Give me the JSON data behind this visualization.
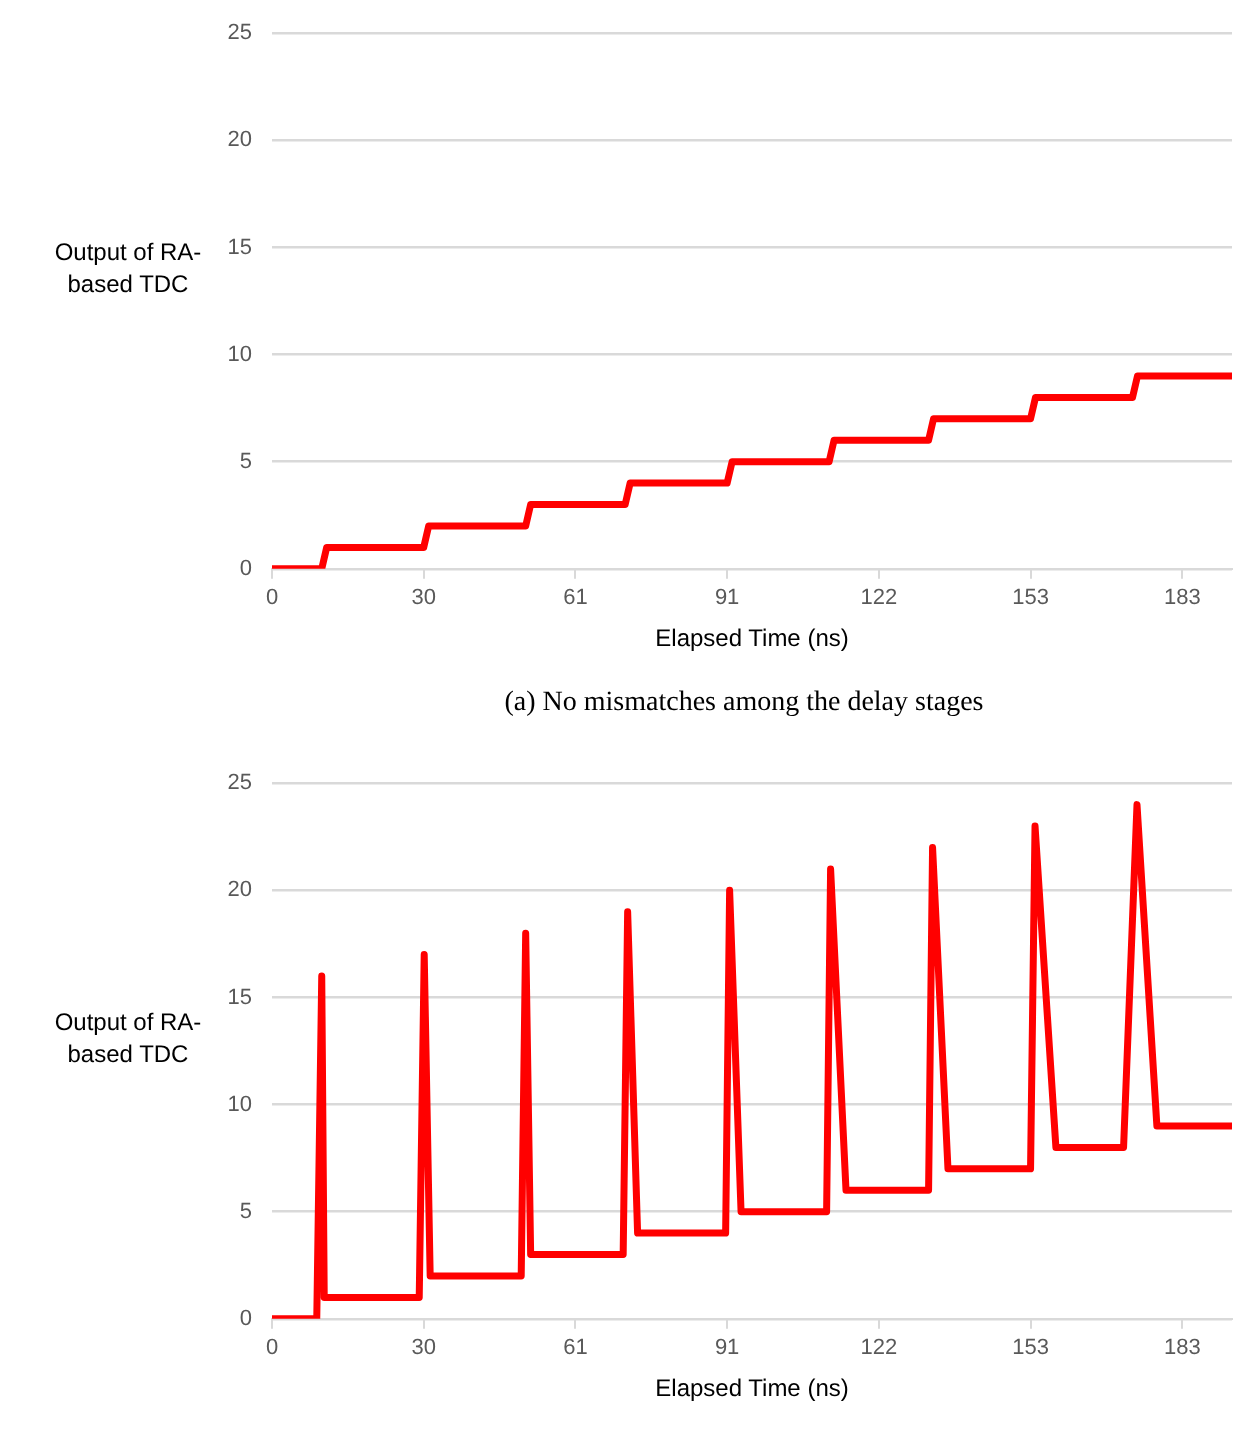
{
  "chart_data": [
    {
      "type": "line",
      "xlabel": "Elapsed Time (ns)",
      "ylabel": "Output of RA-based TDC",
      "annotations": [
        "(a) No mismatches among the delay stages"
      ],
      "x": [
        0,
        10,
        11,
        30.5,
        31.5,
        51,
        52,
        71,
        72,
        91.5,
        92.5,
        112,
        113,
        132,
        133,
        152.5,
        153.5,
        173,
        174,
        193
      ],
      "series": [
        {
          "color": "#ff0000",
          "values": [
            0,
            0,
            1,
            1,
            2,
            2,
            3,
            3,
            4,
            4,
            5,
            5,
            6,
            6,
            7,
            7,
            8,
            8,
            9,
            9
          ]
        }
      ],
      "xlim": [
        0,
        193
      ],
      "ylim": [
        0,
        25
      ],
      "xticks": [
        0,
        {
          "value": 30.5,
          "label": "30"
        },
        61,
        {
          "value": 91.5,
          "label": "91"
        },
        122,
        {
          "value": 152.5,
          "label": "153"
        },
        183
      ],
      "yticks": [
        0,
        5,
        10,
        15,
        20,
        25
      ],
      "grid": "y"
    },
    {
      "type": "line",
      "xlabel": "Elapsed Time (ns)",
      "ylabel": "Output of RA-based TDC",
      "x": [
        0,
        9,
        10,
        10.5,
        29.6,
        30.6,
        31.8,
        50.1,
        51,
        52,
        70.6,
        71.5,
        73.5,
        91.2,
        92,
        94.3,
        111.5,
        112.3,
        115.4,
        132,
        132.8,
        135.9,
        152.5,
        153.4,
        157.6,
        171.2,
        173.9,
        177.9,
        193
      ],
      "series": [
        {
          "color": "#ff0000",
          "values": [
            0,
            0,
            16,
            1,
            1,
            17,
            2,
            2,
            18,
            3,
            3,
            19,
            4,
            4,
            20,
            5,
            5,
            21,
            6,
            6,
            22,
            7,
            7,
            23,
            8,
            8,
            24,
            9,
            9
          ]
        }
      ],
      "xlim": [
        0,
        193
      ],
      "ylim": [
        0,
        25
      ],
      "xticks": [
        0,
        {
          "value": 30.5,
          "label": "30"
        },
        61,
        {
          "value": 91.5,
          "label": "91"
        },
        122,
        {
          "value": 152.5,
          "label": "153"
        },
        183
      ],
      "yticks": [
        0,
        5,
        10,
        15,
        20,
        25
      ],
      "grid": "y"
    }
  ]
}
